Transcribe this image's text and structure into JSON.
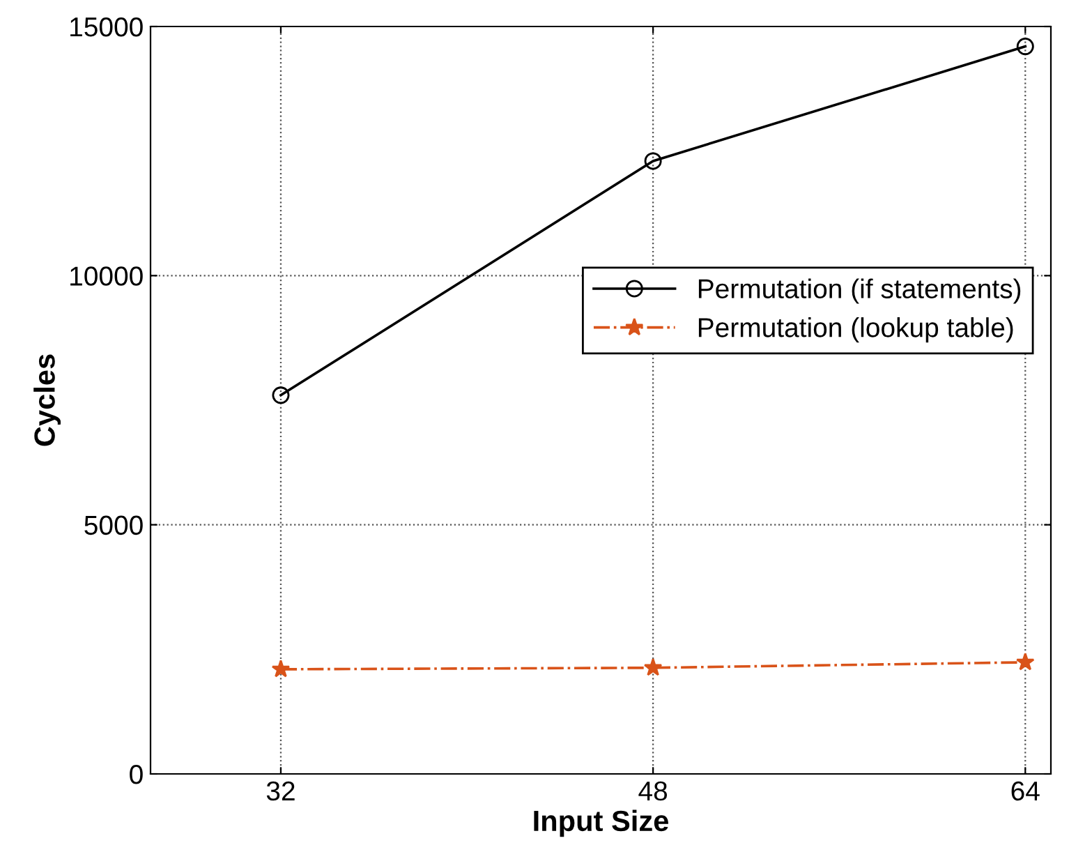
{
  "chart_data": {
    "type": "line",
    "xlabel": "Input Size",
    "ylabel": "Cycles",
    "x": [
      32,
      48,
      64
    ],
    "series": [
      {
        "name": "Permutation (if statements)",
        "color": "#000000",
        "marker": "circle",
        "line_style": "solid",
        "values": [
          7600,
          12300,
          14600
        ]
      },
      {
        "name": "Permutation (lookup table)",
        "color": "#d95319",
        "marker": "star",
        "line_style": "dashdot",
        "values": [
          2100,
          2130,
          2240
        ]
      }
    ],
    "xlim": [
      26.4,
      65.1
    ],
    "xticks": [
      32,
      48,
      64
    ],
    "ylim": [
      0,
      15000
    ],
    "yticks": [
      0,
      5000,
      10000,
      15000
    ],
    "grid": true,
    "legend": "right"
  }
}
